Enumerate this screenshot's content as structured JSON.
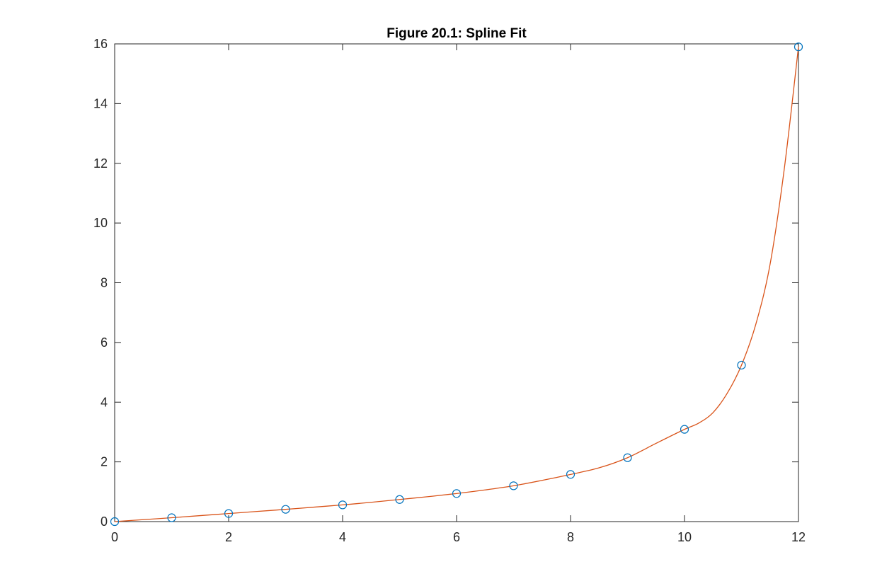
{
  "chart_data": {
    "type": "scatter",
    "title": "Figure 20.1: Spline Fit",
    "xlabel": "",
    "ylabel": "",
    "xlim": [
      0,
      12
    ],
    "ylim": [
      0,
      16
    ],
    "x_ticks": [
      0,
      2,
      4,
      6,
      8,
      10,
      12
    ],
    "y_ticks": [
      0,
      2,
      4,
      6,
      8,
      10,
      12,
      14,
      16
    ],
    "grid": false,
    "box": true,
    "legend": null,
    "series": [
      {
        "style": "markers",
        "marker": "circle",
        "color": "#0072BD",
        "x": [
          0,
          1,
          2,
          3,
          4,
          5,
          6,
          7,
          8,
          9,
          10,
          11,
          12
        ],
        "y": [
          0.0,
          0.13,
          0.27,
          0.41,
          0.56,
          0.74,
          0.94,
          1.2,
          1.58,
          2.14,
          3.09,
          5.24,
          15.9
        ]
      },
      {
        "style": "line",
        "color": "#D95319",
        "x": [
          0,
          0.5,
          1,
          1.5,
          2,
          2.5,
          3,
          3.5,
          4,
          4.5,
          5,
          5.5,
          6,
          6.5,
          7,
          7.5,
          8,
          8.5,
          9,
          9.5,
          10,
          10.25,
          10.5,
          10.75,
          11,
          11.25,
          11.5,
          11.75,
          12
        ],
        "y": [
          0.0,
          0.065,
          0.13,
          0.2,
          0.27,
          0.34,
          0.41,
          0.485,
          0.56,
          0.645,
          0.74,
          0.835,
          0.94,
          1.06,
          1.2,
          1.38,
          1.58,
          1.8,
          2.14,
          2.62,
          3.09,
          3.3,
          3.65,
          4.3,
          5.24,
          6.6,
          8.6,
          11.8,
          15.9
        ]
      }
    ]
  }
}
